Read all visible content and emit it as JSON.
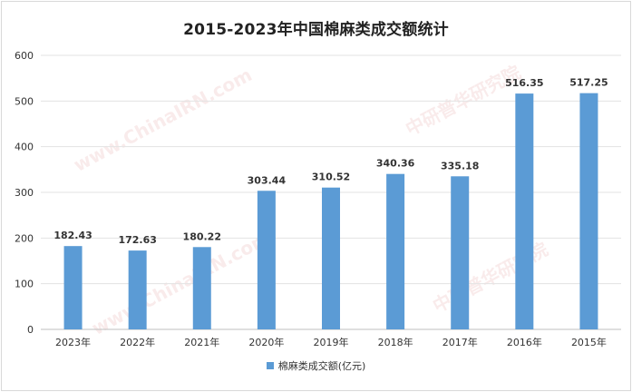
{
  "chart_data": {
    "type": "bar",
    "title": "2015-2023年中国棉麻类成交额统计",
    "categories": [
      "2023年",
      "2022年",
      "2021年",
      "2020年",
      "2019年",
      "2018年",
      "2017年",
      "2016年",
      "2015年"
    ],
    "series": [
      {
        "name": "棉麻类成交额(亿元)",
        "values": [
          182.43,
          172.63,
          180.22,
          303.44,
          310.52,
          340.36,
          335.18,
          516.35,
          517.25
        ]
      }
    ],
    "ylim": [
      0,
      600
    ],
    "yticks": [
      0,
      100,
      200,
      300,
      400,
      500,
      600
    ],
    "grid": true,
    "legend": "bottom",
    "bar_color": "#5b9bd5"
  },
  "watermarks": [
    "www.ChinaIRN.com",
    "中研普华研究院"
  ]
}
